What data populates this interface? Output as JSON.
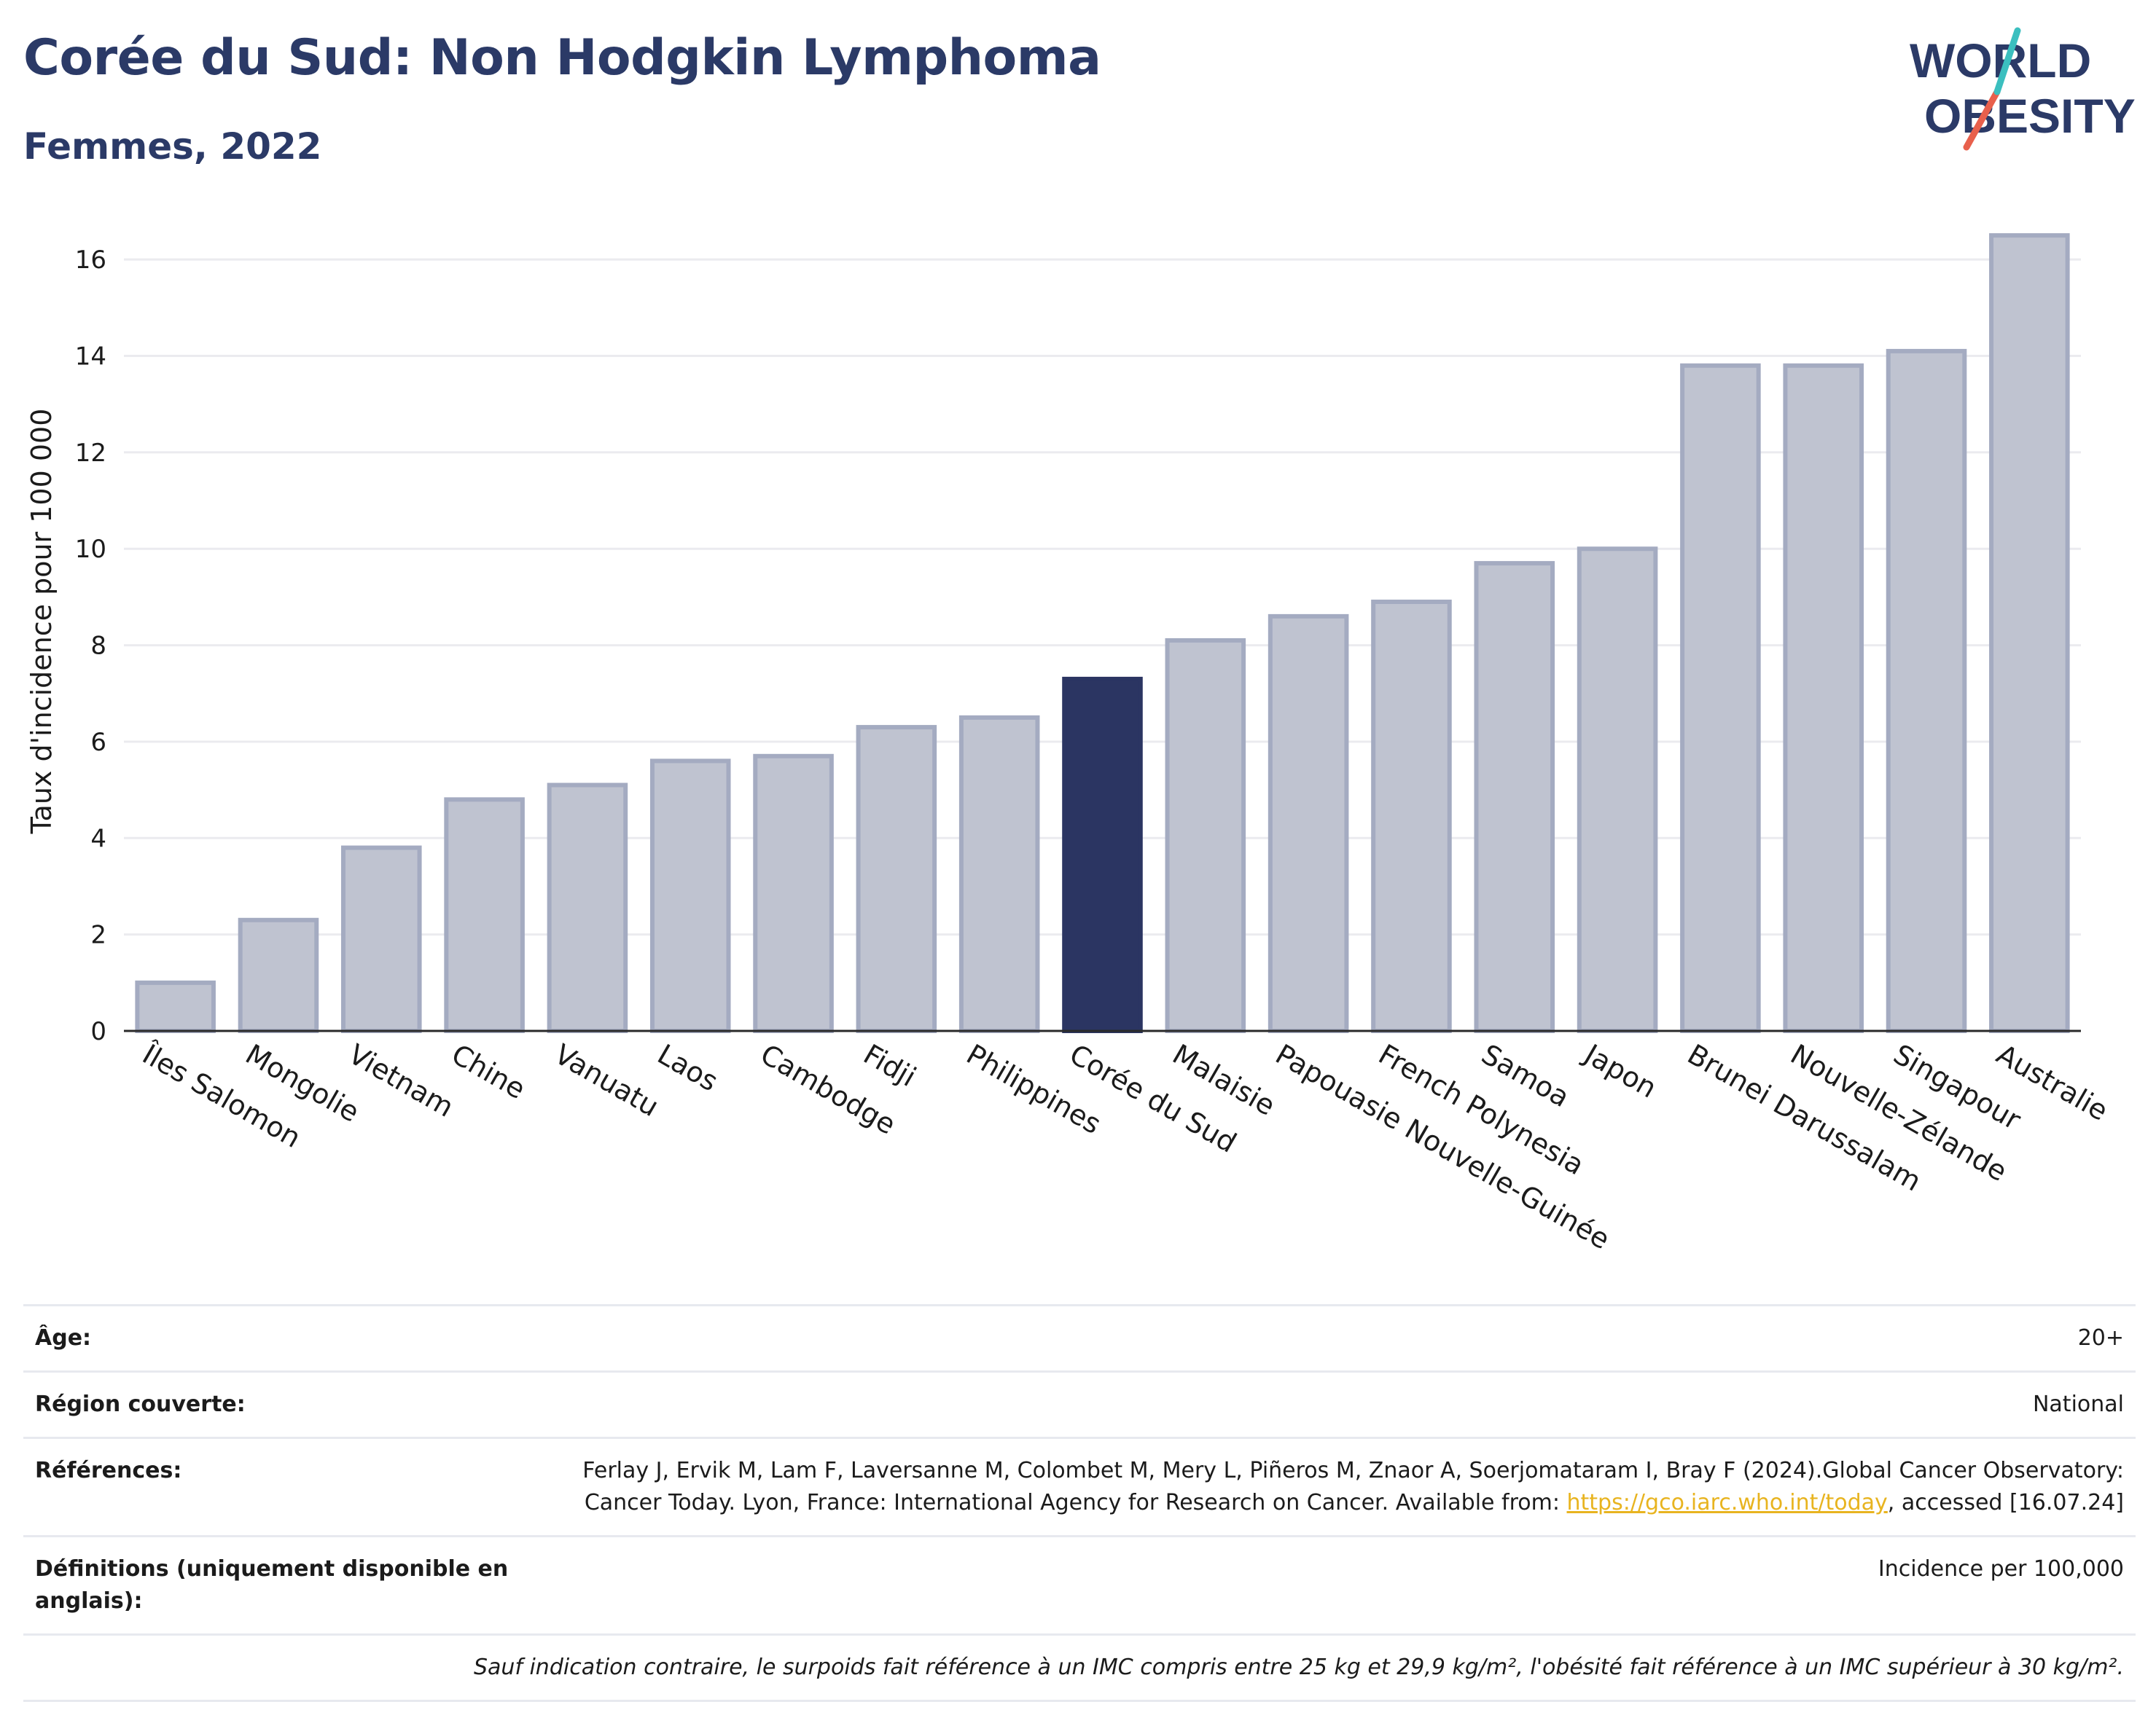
{
  "header": {
    "title": "Corée du Sud: Non Hodgkin Lymphoma",
    "subtitle": "Femmes, 2022"
  },
  "logo": {
    "line1": "WORLD",
    "line2": "OBESITY"
  },
  "colors": {
    "highlight": "#2b3562",
    "bar_fill": "#bfc3d0",
    "bar_stroke": "#a4abc1",
    "title": "#2b3a67",
    "grid": "#ebebef",
    "link": "#e8b420",
    "logo_slash_red": "#e8604c",
    "logo_slash_teal": "#3bbfbf"
  },
  "chart_data": {
    "type": "bar",
    "ylabel": "Taux d'incidence pour 100 000",
    "ylim": [
      0,
      17
    ],
    "yticks": [
      0,
      2,
      4,
      6,
      8,
      10,
      12,
      14,
      16
    ],
    "grid": true,
    "highlight_category": "Corée du Sud",
    "categories": [
      "Îles Salomon",
      "Mongolie",
      "Vietnam",
      "Chine",
      "Vanuatu",
      "Laos",
      "Cambodge",
      "Fidji",
      "Philippines",
      "Corée du Sud",
      "Malaisie",
      "Papouasie Nouvelle-Guinée",
      "French Polynesia",
      "Samoa",
      "Japon",
      "Brunei Darussalam",
      "Nouvelle-Zélande",
      "Singapour",
      "Australie"
    ],
    "values": [
      1.0,
      2.3,
      3.8,
      4.8,
      5.1,
      5.6,
      5.7,
      6.3,
      6.5,
      7.3,
      8.1,
      8.6,
      8.9,
      9.7,
      10.0,
      13.8,
      13.8,
      14.1,
      16.5
    ]
  },
  "table": {
    "age_label": "Âge:",
    "age_value": "20+",
    "region_label": "Région couverte:",
    "region_value": "National",
    "refs_label": "Références:",
    "refs_text_1": "Ferlay J, Ervik M, Lam F, Laversanne M, Colombet M, Mery L, Piñeros M, Znaor A, Soerjomataram I, Bray F (2024).Global Cancer Observatory: Cancer Today. Lyon, France: International Agency for Research on Cancer. Available from: ",
    "refs_link": "https://gco.iarc.who.int/today",
    "refs_text_2": ", accessed [16.07.24]",
    "defs_label": "Définitions (uniquement disponible en anglais):",
    "defs_value": "Incidence per 100,000",
    "note": "Sauf indication contraire, le surpoids fait référence à un IMC compris entre 25 kg et 29,9 kg/m², l'obésité fait référence à un IMC supérieur à 30 kg/m²."
  }
}
